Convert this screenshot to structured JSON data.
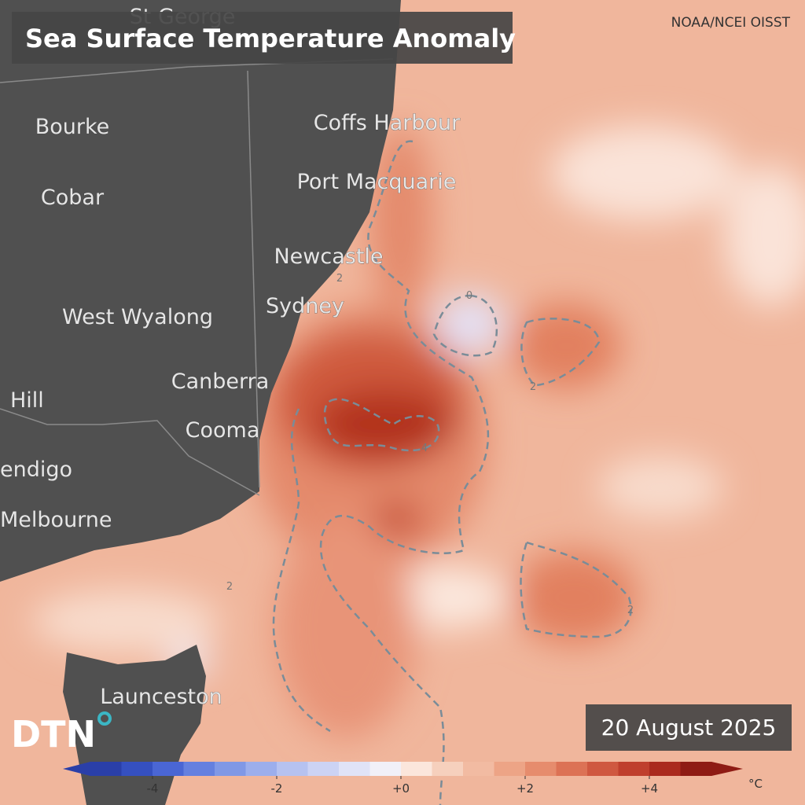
{
  "header": {
    "title": "Sea Surface Temperature Anomaly",
    "source": "NOAA/NCEI OISST",
    "date": "20 August 2025",
    "logo": "DTN"
  },
  "places": [
    "St George",
    "Bourke",
    "Cobar",
    "Coffs Harbour",
    "Port Macquarie",
    "Newcastle",
    "Sydney",
    "West Wyalong",
    "Canberra",
    "Hill",
    "Cooma",
    "endigo",
    "Melbourne",
    "Launceston"
  ],
  "contour_labels": [
    "0",
    "2",
    "4",
    "2",
    "2",
    "2"
  ],
  "colorbar": {
    "lim": [
      -5,
      5
    ],
    "ticks": [
      -4,
      -2,
      {
        "value": 0,
        "label": "+0"
      },
      {
        "value": 2,
        "label": "+2"
      },
      {
        "value": 4,
        "label": "+4"
      }
    ],
    "unit": "°C",
    "colors": [
      "#2a3fa8",
      "#3550c0",
      "#4a66d4",
      "#6580df",
      "#8098e6",
      "#9caeec",
      "#b6c2f0",
      "#ccd3f4",
      "#e0e3f7",
      "#f1f0f8",
      "#fbe6dc",
      "#f6d0bd",
      "#f2bba2",
      "#eda486",
      "#e68c6d",
      "#dc7255",
      "#cf5840",
      "#bf3f2d",
      "#aa2a1e",
      "#8e1b14"
    ]
  }
}
